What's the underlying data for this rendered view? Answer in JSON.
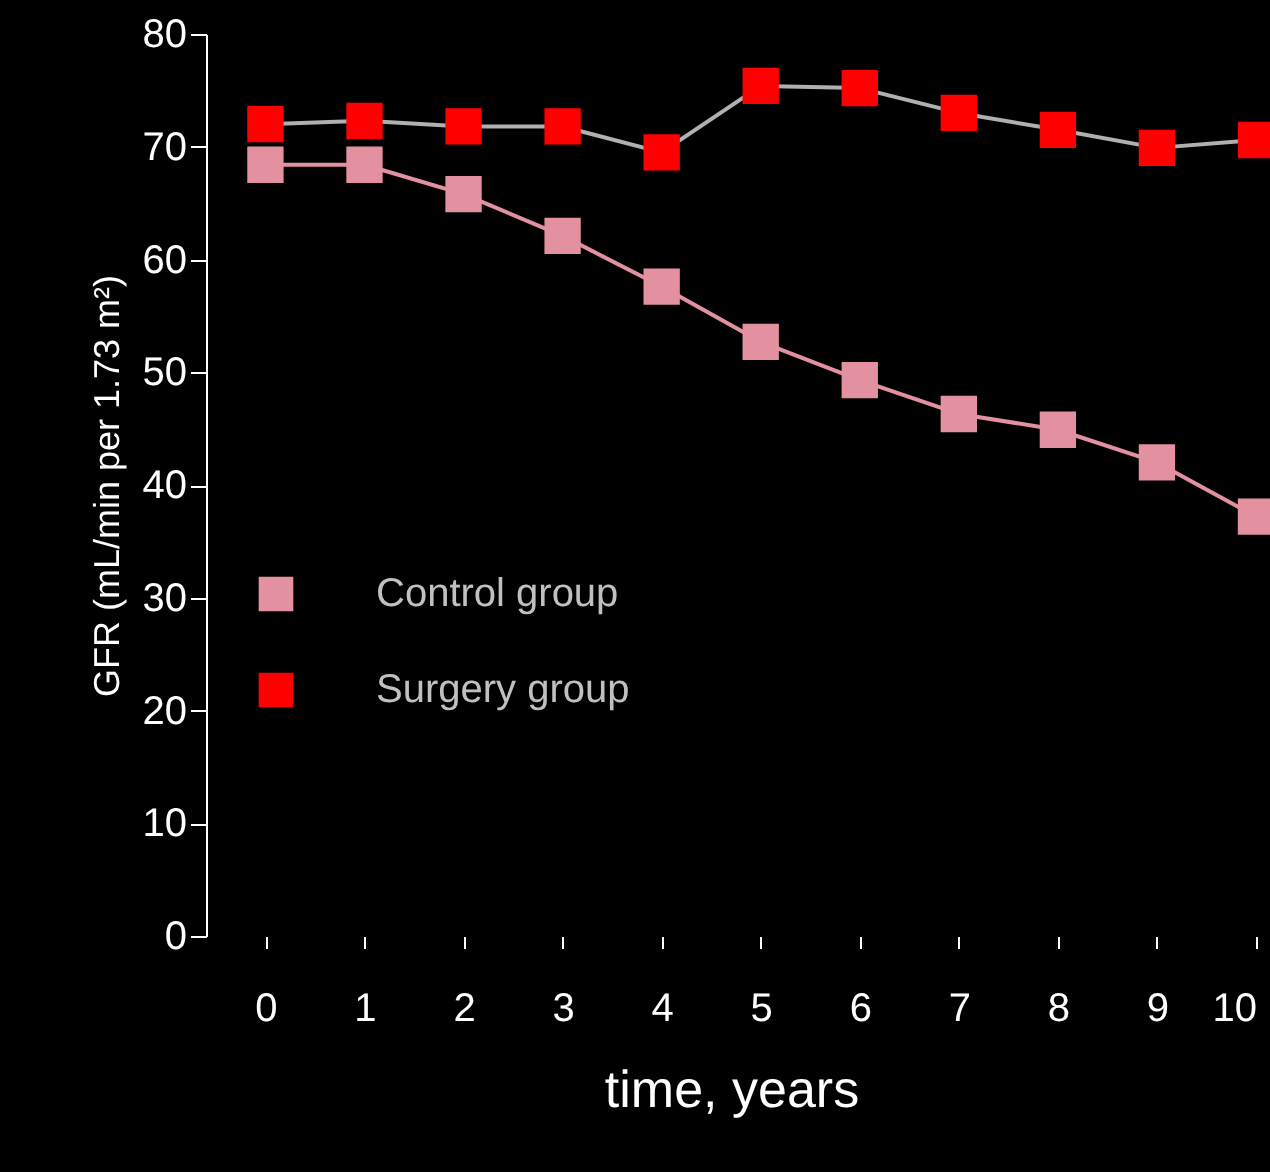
{
  "chart_data": {
    "type": "line",
    "xlabel": "time, years",
    "ylabel": "GFR (mL/min per 1.73 m²)",
    "x": [
      0,
      1,
      2,
      3,
      4,
      5,
      6,
      7,
      8,
      9,
      10
    ],
    "series": [
      {
        "name": "Surgery group",
        "color": "#ff0000",
        "values": [
          72.0,
          72.3,
          71.8,
          71.8,
          69.5,
          75.4,
          75.2,
          73.0,
          71.5,
          69.9,
          70.6
        ]
      },
      {
        "name": "Control group",
        "color": "#e391a0",
        "values": [
          68.4,
          68.4,
          65.8,
          62.1,
          57.6,
          52.7,
          49.3,
          46.3,
          44.9,
          42.0,
          37.2
        ]
      }
    ],
    "xlim": [
      -0.6,
      10
    ],
    "xticks": [
      0,
      1,
      2,
      3,
      4,
      5,
      6,
      7,
      8,
      9,
      10
    ],
    "ylim": [
      0,
      80
    ],
    "yticks": [
      0,
      10,
      20,
      30,
      40,
      50,
      60,
      70,
      80
    ],
    "marker": "square",
    "legend": "left",
    "grid": false
  }
}
